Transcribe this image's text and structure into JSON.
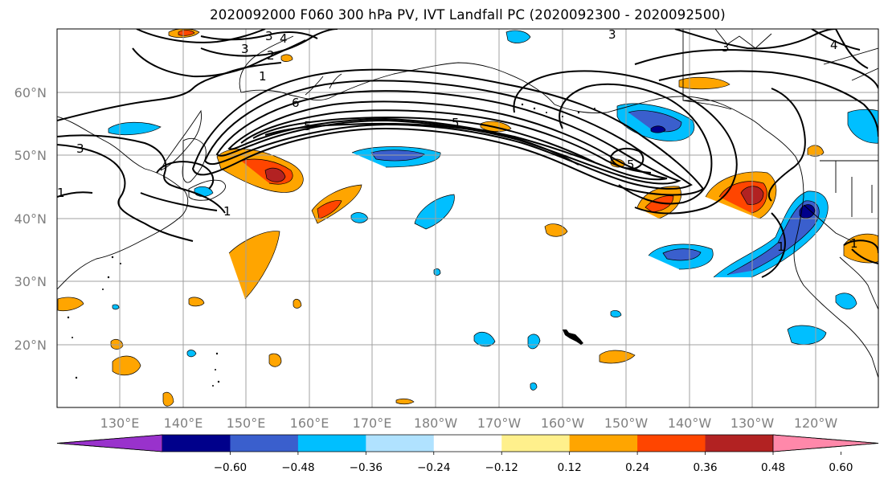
{
  "title": "2020092000 F060 300 hPa PV, IVT Landfall PC (2020092300 - 2020092500)",
  "map": {
    "lat_labels": [
      "60°N",
      "50°N",
      "40°N",
      "30°N",
      "20°N"
    ],
    "lon_labels": [
      "130°E",
      "140°E",
      "150°E",
      "160°E",
      "170°E",
      "180°W",
      "170°W",
      "160°W",
      "150°W",
      "140°W",
      "130°W",
      "120°W"
    ],
    "grid": true,
    "pv_contour_labels": [
      "3",
      "4",
      "3",
      "2",
      "1",
      "6",
      "5",
      "5",
      "5",
      "3",
      "4",
      "3",
      "1",
      "1",
      "3",
      "1",
      "1"
    ]
  },
  "colorbar": {
    "ticks": [
      "−0.60",
      "−0.48",
      "−0.36",
      "−0.24",
      "−0.12",
      "0.12",
      "0.24",
      "0.36",
      "0.48",
      "0.60"
    ],
    "colors": [
      "#9932cc",
      "#00008b",
      "#3a5fcd",
      "#00bfff",
      "#b0e2ff",
      "#ffffff",
      "#fff08c",
      "#ffa500",
      "#ff4500",
      "#b22222",
      "#ff88aa"
    ],
    "extend": "both"
  }
}
